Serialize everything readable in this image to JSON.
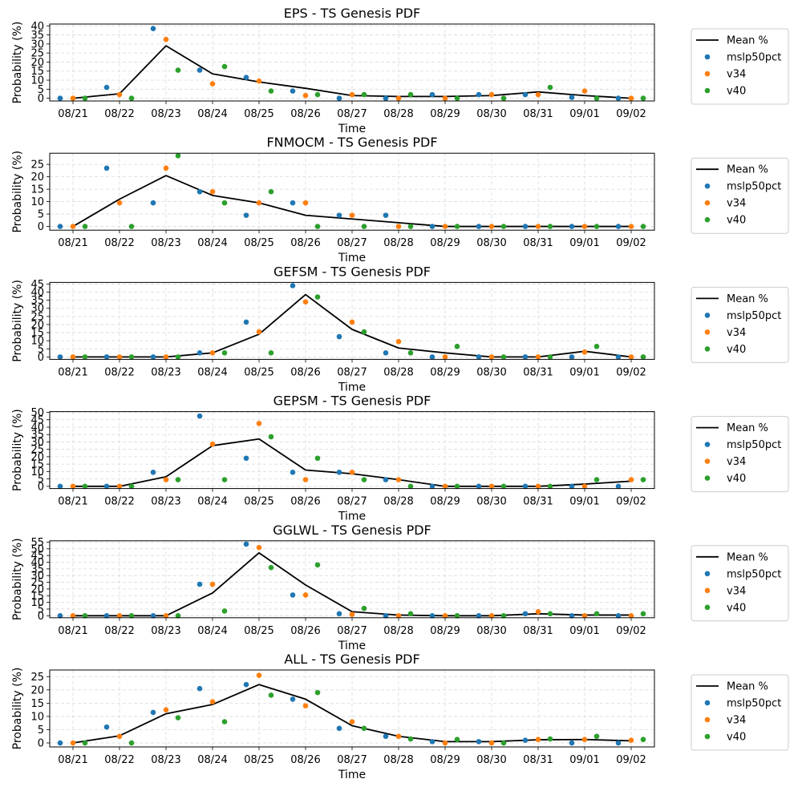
{
  "figure": {
    "x_ticks": [
      "08/21",
      "08/22",
      "08/23",
      "08/24",
      "08/25",
      "08/26",
      "08/27",
      "08/28",
      "08/29",
      "08/30",
      "08/31",
      "09/01",
      "09/02"
    ],
    "x_label": "Time",
    "y_label": "Probability (%)",
    "legend": [
      {
        "label": "Mean %",
        "kind": "line",
        "color": "#000000"
      },
      {
        "label": "mslp50pct",
        "kind": "marker",
        "color": "#1f77b4"
      },
      {
        "label": "v34",
        "kind": "marker",
        "color": "#ff7f0e"
      },
      {
        "label": "v40",
        "kind": "marker",
        "color": "#2ca02c"
      }
    ]
  },
  "chart_data": [
    {
      "type": "line",
      "title": "EPS - TS Genesis PDF",
      "xlabel": "Time",
      "ylabel": "Probability (%)",
      "categories": [
        "08/21",
        "08/22",
        "08/23",
        "08/24",
        "08/25",
        "08/26",
        "08/27",
        "08/28",
        "08/29",
        "08/30",
        "08/31",
        "09/01",
        "09/02"
      ],
      "ylim": [
        -1.5,
        41
      ],
      "yticks": [
        0,
        5,
        10,
        15,
        20,
        25,
        30,
        35,
        40
      ],
      "grid": true,
      "legend_position": "right",
      "series": [
        {
          "name": "Mean %",
          "kind": "line",
          "color": "#000000",
          "values": [
            0,
            2.5,
            29,
            13.5,
            9,
            5.5,
            1.5,
            1,
            1,
            1.5,
            3.5,
            1.5,
            0
          ]
        },
        {
          "name": "mslp50pct",
          "kind": "scatter",
          "color": "#1f77b4",
          "values": [
            0,
            6,
            38.5,
            15.5,
            11.5,
            4,
            0,
            0,
            2,
            2,
            2,
            0.5,
            0
          ]
        },
        {
          "name": "v34",
          "kind": "scatter",
          "color": "#ff7f0e",
          "values": [
            0,
            2,
            32.5,
            8,
            9.5,
            1.5,
            2,
            0,
            0,
            2,
            2,
            4,
            0
          ]
        },
        {
          "name": "v40",
          "kind": "scatter",
          "color": "#2ca02c",
          "values": [
            0,
            0,
            15.5,
            17.5,
            4,
            2,
            2,
            2,
            0,
            0,
            6,
            0,
            0
          ]
        }
      ]
    },
    {
      "type": "line",
      "title": "FNMOCM - TS Genesis PDF",
      "xlabel": "Time",
      "ylabel": "Probability (%)",
      "categories": [
        "08/21",
        "08/22",
        "08/23",
        "08/24",
        "08/25",
        "08/26",
        "08/27",
        "08/28",
        "08/29",
        "08/30",
        "08/31",
        "09/01",
        "09/02"
      ],
      "ylim": [
        -1.5,
        29.5
      ],
      "yticks": [
        0,
        5,
        10,
        15,
        20,
        25
      ],
      "grid": true,
      "legend_position": "right",
      "series": [
        {
          "name": "Mean %",
          "kind": "line",
          "color": "#000000",
          "values": [
            0,
            11,
            20.5,
            12.5,
            9.5,
            4.5,
            3,
            1.5,
            0,
            0,
            0,
            0,
            0
          ]
        },
        {
          "name": "mslp50pct",
          "kind": "scatter",
          "color": "#1f77b4",
          "values": [
            0,
            23.5,
            9.5,
            14,
            4.5,
            9.5,
            4.5,
            4.5,
            0,
            0,
            0,
            0,
            0
          ]
        },
        {
          "name": "v34",
          "kind": "scatter",
          "color": "#ff7f0e",
          "values": [
            0,
            9.5,
            23.5,
            14,
            9.5,
            9.5,
            4.5,
            0,
            0,
            0,
            0,
            0,
            0
          ]
        },
        {
          "name": "v40",
          "kind": "scatter",
          "color": "#2ca02c",
          "values": [
            0,
            0,
            28.5,
            9.5,
            14,
            0,
            0,
            0,
            0,
            0,
            0,
            0,
            0
          ]
        }
      ]
    },
    {
      "type": "line",
      "title": "GEFSM - TS Genesis PDF",
      "xlabel": "Time",
      "ylabel": "Probability (%)",
      "categories": [
        "08/21",
        "08/22",
        "08/23",
        "08/24",
        "08/25",
        "08/26",
        "08/27",
        "08/28",
        "08/29",
        "08/30",
        "08/31",
        "09/01",
        "09/02"
      ],
      "ylim": [
        -1.5,
        46
      ],
      "yticks": [
        0,
        5,
        10,
        15,
        20,
        25,
        30,
        35,
        40,
        45
      ],
      "grid": true,
      "legend_position": "right",
      "series": [
        {
          "name": "Mean %",
          "kind": "line",
          "color": "#000000",
          "values": [
            0,
            0,
            0,
            2.5,
            14,
            38.5,
            17,
            5.5,
            2.5,
            0,
            0,
            3.5,
            0
          ]
        },
        {
          "name": "mslp50pct",
          "kind": "scatter",
          "color": "#1f77b4",
          "values": [
            0,
            0,
            0,
            2.5,
            21.5,
            44,
            12.5,
            2.5,
            0,
            0,
            0,
            0,
            0
          ]
        },
        {
          "name": "v34",
          "kind": "scatter",
          "color": "#ff7f0e",
          "values": [
            0,
            0,
            0,
            2.5,
            15.5,
            34,
            21.5,
            9.5,
            0,
            0,
            0,
            3,
            0
          ]
        },
        {
          "name": "v40",
          "kind": "scatter",
          "color": "#2ca02c",
          "values": [
            0,
            0,
            0,
            2.5,
            2.5,
            37,
            15.5,
            2.5,
            6.5,
            0,
            0,
            6.5,
            0
          ]
        }
      ]
    },
    {
      "type": "line",
      "title": "GEPSM - TS Genesis PDF",
      "xlabel": "Time",
      "ylabel": "Probability (%)",
      "categories": [
        "08/21",
        "08/22",
        "08/23",
        "08/24",
        "08/25",
        "08/26",
        "08/27",
        "08/28",
        "08/29",
        "08/30",
        "08/31",
        "09/01",
        "09/02"
      ],
      "ylim": [
        -1.5,
        50.5
      ],
      "yticks": [
        0,
        5,
        10,
        15,
        20,
        25,
        30,
        35,
        40,
        45,
        50
      ],
      "grid": true,
      "legend_position": "right",
      "series": [
        {
          "name": "Mean %",
          "kind": "line",
          "color": "#000000",
          "values": [
            0,
            0,
            6.5,
            27.5,
            32,
            11,
            8.5,
            4.5,
            0,
            0,
            0,
            1.5,
            3.5
          ]
        },
        {
          "name": "mslp50pct",
          "kind": "scatter",
          "color": "#1f77b4",
          "values": [
            0,
            0,
            9.5,
            47.5,
            19,
            9.5,
            9.5,
            4.5,
            0,
            0,
            0,
            0,
            0
          ]
        },
        {
          "name": "v34",
          "kind": "scatter",
          "color": "#ff7f0e",
          "values": [
            0,
            0,
            4.5,
            28.5,
            42.5,
            4.5,
            9.5,
            4.5,
            0,
            0,
            0,
            0,
            4.5
          ]
        },
        {
          "name": "v40",
          "kind": "scatter",
          "color": "#2ca02c",
          "values": [
            0,
            0,
            4.5,
            4.5,
            33.5,
            19,
            4.5,
            0,
            0,
            0,
            0,
            4.5,
            4.5
          ]
        }
      ]
    },
    {
      "type": "line",
      "title": "GGLWL - TS Genesis PDF",
      "xlabel": "Time",
      "ylabel": "Probability (%)",
      "categories": [
        "08/21",
        "08/22",
        "08/23",
        "08/24",
        "08/25",
        "08/26",
        "08/27",
        "08/28",
        "08/29",
        "08/30",
        "08/31",
        "09/01",
        "09/02"
      ],
      "ylim": [
        -1.5,
        56
      ],
      "yticks": [
        0,
        5,
        10,
        15,
        20,
        25,
        30,
        35,
        40,
        45,
        50,
        55
      ],
      "grid": true,
      "legend_position": "right",
      "series": [
        {
          "name": "Mean %",
          "kind": "line",
          "color": "#000000",
          "values": [
            0,
            0,
            0,
            17,
            47,
            23,
            3,
            0.5,
            0,
            0,
            1.5,
            0.5,
            0.5
          ]
        },
        {
          "name": "mslp50pct",
          "kind": "scatter",
          "color": "#1f77b4",
          "values": [
            0,
            0,
            0,
            23.5,
            53.5,
            15.5,
            1.5,
            0,
            0,
            0,
            1.5,
            0,
            0
          ]
        },
        {
          "name": "v34",
          "kind": "scatter",
          "color": "#ff7f0e",
          "values": [
            0,
            0,
            0,
            23.5,
            51,
            15.5,
            1,
            0,
            0,
            0,
            3,
            0,
            0
          ]
        },
        {
          "name": "v40",
          "kind": "scatter",
          "color": "#2ca02c",
          "values": [
            0,
            0,
            0,
            3.5,
            36,
            38,
            5.5,
            1.5,
            0,
            0,
            1.5,
            1.5,
            1.5
          ]
        }
      ]
    },
    {
      "type": "line",
      "title": "ALL - TS Genesis PDF",
      "xlabel": "Time",
      "ylabel": "Probability (%)",
      "categories": [
        "08/21",
        "08/22",
        "08/23",
        "08/24",
        "08/25",
        "08/26",
        "08/27",
        "08/28",
        "08/29",
        "08/30",
        "08/31",
        "09/01",
        "09/02"
      ],
      "ylim": [
        -1.5,
        27.5
      ],
      "yticks": [
        0,
        5,
        10,
        15,
        20,
        25
      ],
      "grid": true,
      "legend_position": "right",
      "series": [
        {
          "name": "Mean %",
          "kind": "line",
          "color": "#000000",
          "values": [
            0,
            2.7,
            11,
            14.5,
            22,
            16.5,
            6.5,
            2.5,
            0.5,
            0.5,
            1.2,
            1.3,
            0.8
          ]
        },
        {
          "name": "mslp50pct",
          "kind": "scatter",
          "color": "#1f77b4",
          "values": [
            0,
            6,
            11.5,
            20.5,
            22,
            16.5,
            5.5,
            2.5,
            0.5,
            0.5,
            1,
            0,
            0
          ]
        },
        {
          "name": "v34",
          "kind": "scatter",
          "color": "#ff7f0e",
          "values": [
            0,
            2.5,
            12.5,
            15.5,
            25.5,
            14,
            8,
            2.5,
            0,
            0,
            1.3,
            1.3,
            1
          ]
        },
        {
          "name": "v40",
          "kind": "scatter",
          "color": "#2ca02c",
          "values": [
            0,
            0,
            9.5,
            8,
            18,
            19,
            5.5,
            1.5,
            1.3,
            0,
            1.5,
            2.5,
            1.3
          ]
        }
      ]
    }
  ]
}
